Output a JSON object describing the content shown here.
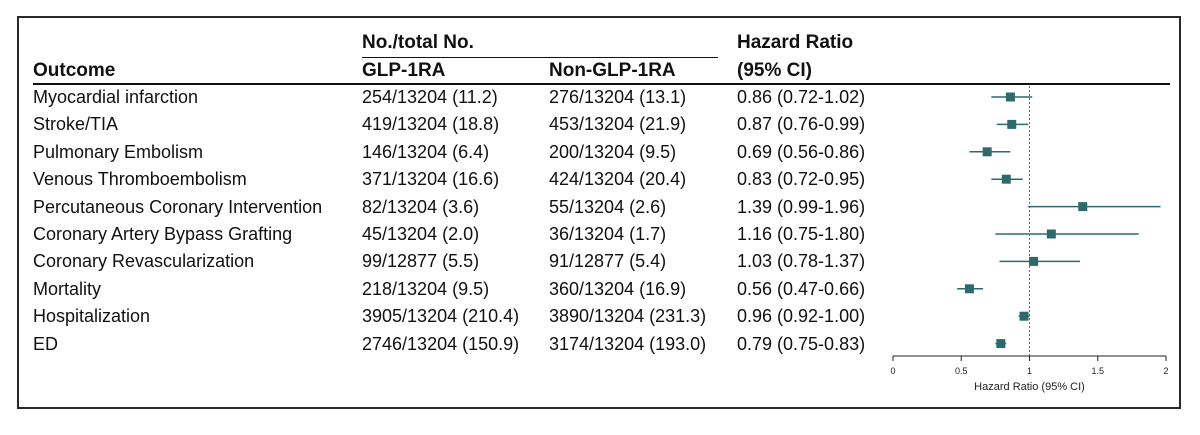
{
  "header": {
    "outcome": "Outcome",
    "count_group": "No./total No.",
    "glp": "GLP-1RA",
    "nonglp": "Non-GLP-1RA",
    "hr_line1": "Hazard Ratio",
    "hr_line2": "(95% CI)"
  },
  "rows": [
    {
      "outcome": "Myocardial infarction",
      "glp": "254/13204 (11.2)",
      "nonglp": "276/13204 (13.1)",
      "hr_text": "0.86 (0.72-1.02)"
    },
    {
      "outcome": "Stroke/TIA",
      "glp": "419/13204 (18.8)",
      "nonglp": "453/13204 (21.9)",
      "hr_text": "0.87 (0.76-0.99)"
    },
    {
      "outcome": "Pulmonary Embolism",
      "glp": "146/13204 (6.4)",
      "nonglp": "200/13204 (9.5)",
      "hr_text": "0.69 (0.56-0.86)"
    },
    {
      "outcome": "Venous Thromboembolism",
      "glp": "371/13204 (16.6)",
      "nonglp": "424/13204 (20.4)",
      "hr_text": "0.83 (0.72-0.95)"
    },
    {
      "outcome": "Percutaneous Coronary Intervention",
      "glp": "82/13204 (3.6)",
      "nonglp": "55/13204 (2.6)",
      "hr_text": "1.39 (0.99-1.96)"
    },
    {
      "outcome": "Coronary Artery Bypass Grafting",
      "glp": "45/13204 (2.0)",
      "nonglp": "36/13204 (1.7)",
      "hr_text": "1.16 (0.75-1.80)"
    },
    {
      "outcome": "Coronary Revascularization",
      "glp": "99/12877 (5.5)",
      "nonglp": "91/12877 (5.4)",
      "hr_text": "1.03 (0.78-1.37)"
    },
    {
      "outcome": "Mortality",
      "glp": "218/13204 (9.5)",
      "nonglp": "360/13204 (16.9)",
      "hr_text": "0.56 (0.47-0.66)"
    },
    {
      "outcome": "Hospitalization",
      "glp": "3905/13204 (210.4)",
      "nonglp": "3890/13204 (231.3)",
      "hr_text": "0.96 (0.92-1.00)"
    },
    {
      "outcome": "ED",
      "glp": "2746/13204 (150.9)",
      "nonglp": "3174/13204 (193.0)",
      "hr_text": "0.79 (0.75-0.83)"
    }
  ],
  "chart_data": {
    "type": "scatter",
    "xlabel": "Hazard Ratio (95% CI)",
    "xlim": [
      0,
      2
    ],
    "xticks": [
      "0",
      "0.5",
      "1",
      "1.5",
      "2"
    ],
    "reference_line": 1,
    "categories": [
      "Myocardial infarction",
      "Stroke/TIA",
      "Pulmonary Embolism",
      "Venous Thromboembolism",
      "Percutaneous Coronary Intervention",
      "Coronary Artery Bypass Grafting",
      "Coronary Revascularization",
      "Mortality",
      "Hospitalization",
      "ED"
    ],
    "series": [
      {
        "hr": [
          0.86,
          0.87,
          0.69,
          0.83,
          1.39,
          1.16,
          1.03,
          0.56,
          0.96,
          0.79
        ],
        "lower": [
          0.72,
          0.76,
          0.56,
          0.72,
          0.99,
          0.75,
          0.78,
          0.47,
          0.92,
          0.75
        ],
        "upper": [
          1.02,
          0.99,
          0.86,
          0.95,
          1.96,
          1.8,
          1.37,
          0.66,
          1.0,
          0.83
        ]
      }
    ],
    "colors": {
      "marker": "#2d6b6b",
      "ci_line": "#2d6b6b",
      "ref_line": "#666666",
      "axis": "#222222"
    }
  }
}
